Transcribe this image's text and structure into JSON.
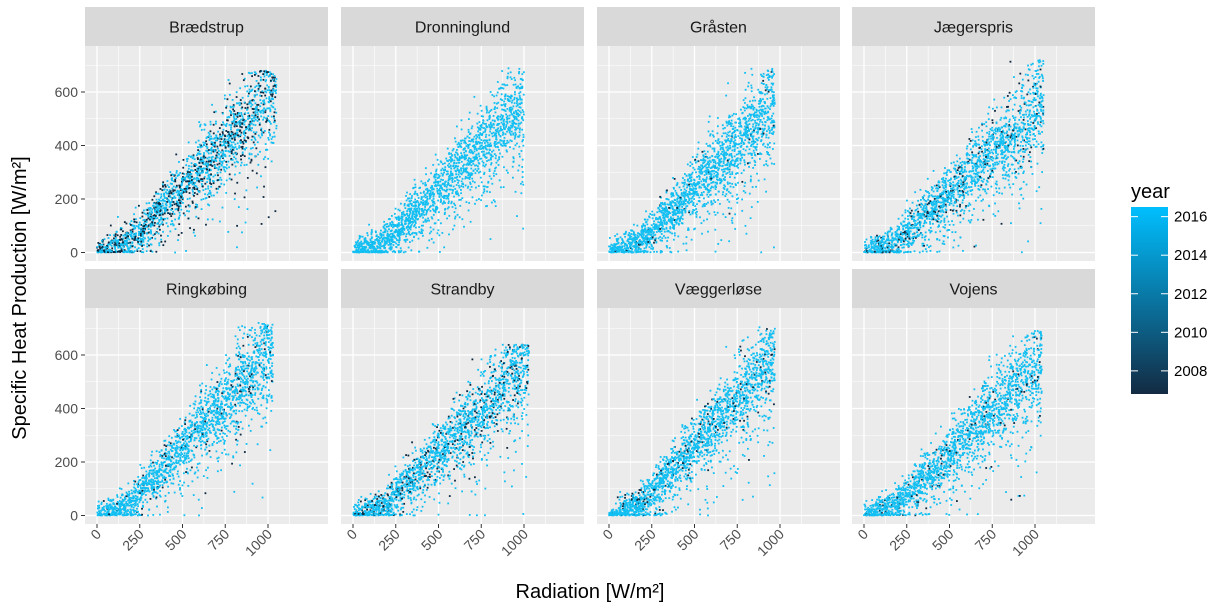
{
  "chart_data": {
    "type": "scatter",
    "xlabel": "Radiation [W/m²]",
    "ylabel": "Specific Heat Production [W/m²]",
    "xlim": [
      -30,
      1250
    ],
    "ylim": [
      -30,
      740
    ],
    "x_ticks": [
      0,
      250,
      500,
      750,
      1000
    ],
    "x_tick_labels": [
      "0",
      "250",
      "500",
      "750",
      "1000"
    ],
    "y_ticks": [
      0,
      200,
      400,
      600
    ],
    "y_tick_labels": [
      "0",
      "200",
      "400",
      "600"
    ],
    "grid": true,
    "facets": [
      {
        "name": "Brædstrup",
        "xmax": 1050,
        "slope": 0.66,
        "ymax": 680,
        "dark": 0.3,
        "min_year": 2008
      },
      {
        "name": "Dronninglund",
        "xmax": 1000,
        "slope": 0.64,
        "ymax": 690,
        "dark": 0.0,
        "min_year": 2014
      },
      {
        "name": "Gråsten",
        "xmax": 970,
        "slope": 0.66,
        "ymax": 690,
        "dark": 0.03,
        "min_year": 2012
      },
      {
        "name": "Jægerspris",
        "xmax": 1050,
        "slope": 0.6,
        "ymax": 720,
        "dark": 0.12,
        "min_year": 2010
      },
      {
        "name": "Ringkøbing",
        "xmax": 1030,
        "slope": 0.7,
        "ymax": 720,
        "dark": 0.06,
        "min_year": 2010
      },
      {
        "name": "Strandby",
        "xmax": 1030,
        "slope": 0.63,
        "ymax": 640,
        "dark": 0.15,
        "min_year": 2008
      },
      {
        "name": "Væggerløse",
        "xmax": 970,
        "slope": 0.72,
        "ymax": 710,
        "dark": 0.08,
        "min_year": 2010
      },
      {
        "name": "Vojens",
        "xmax": 1040,
        "slope": 0.63,
        "ymax": 690,
        "dark": 0.05,
        "min_year": 2012
      }
    ],
    "legend": {
      "title": "year",
      "position": "right",
      "range": [
        2006.8,
        2016.5
      ],
      "ticks": [
        2008,
        2010,
        2012,
        2014,
        2016
      ],
      "tick_labels": [
        "2008",
        "2010",
        "2012",
        "2014",
        "2016"
      ],
      "color_low": "#132B43",
      "color_high": "#00BFFF"
    },
    "colors": {
      "panel_bg": "#EBEBEB",
      "grid_major": "#FFFFFF",
      "strip_bg": "#D9D9D9",
      "point_light": "#12BFF2",
      "point_dark": "#0B2840"
    }
  }
}
